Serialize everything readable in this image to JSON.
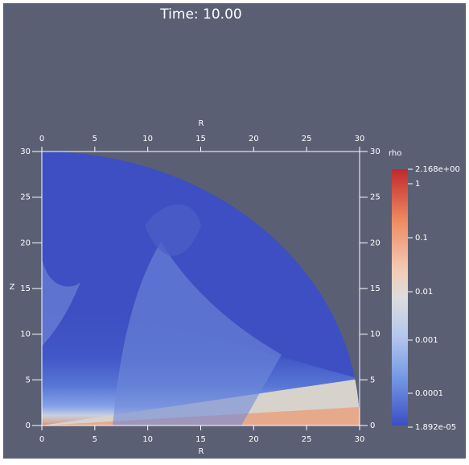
{
  "title": "Time: 10.00",
  "axes": {
    "x_label": "R",
    "y_label": "Z",
    "x_ticks": [
      "0",
      "5",
      "10",
      "15",
      "20",
      "25",
      "30"
    ],
    "y_ticks": [
      "0",
      "5",
      "10",
      "15",
      "20",
      "25",
      "30"
    ]
  },
  "colorbar": {
    "label": "rho",
    "ticks": [
      "2.168e+00",
      "1",
      "0.1",
      "0.01",
      "0.001",
      "0.0001",
      "1.892e-05"
    ]
  }
}
